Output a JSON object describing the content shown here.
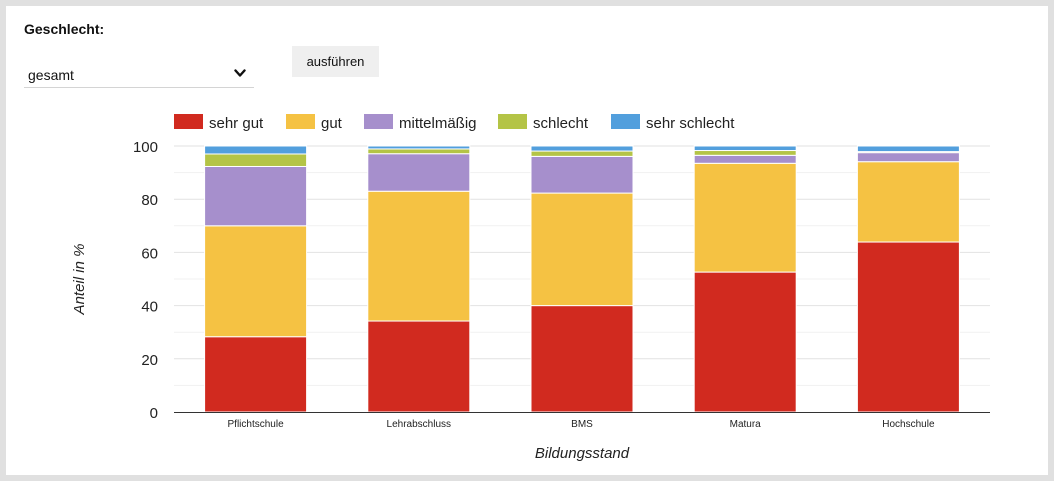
{
  "filter": {
    "label": "Geschlecht:",
    "selected": "gesamt",
    "run_label": "ausführen"
  },
  "chart_data": {
    "type": "bar",
    "stacked": true,
    "categories": [
      "Pflichtschule",
      "Lehrabschluss",
      "BMS",
      "Matura",
      "Hochschule"
    ],
    "series": [
      {
        "name": "sehr gut",
        "color": "#d12a1f",
        "values": [
          28.3,
          34.2,
          40.0,
          52.6,
          63.9
        ]
      },
      {
        "name": "gut",
        "color": "#f5c243",
        "values": [
          41.7,
          48.8,
          42.3,
          40.9,
          30.2
        ]
      },
      {
        "name": "mittelmäßig",
        "color": "#a68fcc",
        "values": [
          22.3,
          14.1,
          13.8,
          3.0,
          3.4
        ]
      },
      {
        "name": "schlecht",
        "color": "#b4c446",
        "values": [
          4.7,
          1.8,
          2.0,
          1.8,
          0.4
        ]
      },
      {
        "name": "sehr schlecht",
        "color": "#529fdd",
        "values": [
          3.0,
          1.1,
          1.9,
          1.7,
          2.1
        ]
      }
    ],
    "xlabel": "Bildungsstand",
    "ylabel": "Anteil in %",
    "ylim": [
      0,
      100
    ],
    "yticks": [
      0,
      20,
      40,
      60,
      80,
      100
    ],
    "grid": true,
    "legend_position": "top"
  }
}
